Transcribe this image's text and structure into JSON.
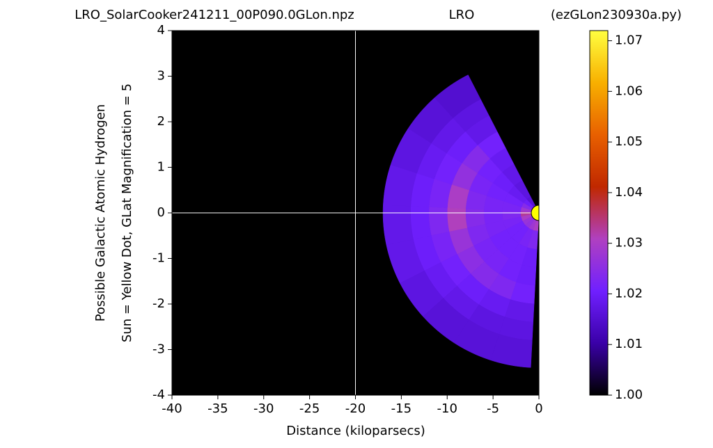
{
  "chart_data": {
    "type": "polar-heatmap",
    "title_left": "LRO_SolarCooker241211_00P090.0GLon.npz",
    "title_center": "LRO",
    "title_right": "(ezGLon230930a.py)",
    "ylabel": [
      "Possible Galactic Atomic Hydrogen",
      "Sun = Yellow Dot, GLat Magnification = 5"
    ],
    "xlabel": "Distance (kiloparsecs)",
    "xlim": [
      -40,
      0
    ],
    "xticks": [
      -40,
      -35,
      -30,
      -25,
      -20,
      -15,
      -10,
      -5,
      0
    ],
    "ylim": [
      -4,
      4
    ],
    "yticks": [
      -4,
      -3,
      -2,
      -1,
      0,
      1,
      2,
      3,
      4
    ],
    "y_magnification": 5,
    "theta_edges": [
      117,
      132,
      147,
      162,
      177,
      192,
      207,
      222,
      237,
      252,
      267
    ],
    "r_edges": [
      0,
      2,
      4,
      6,
      8,
      10,
      12,
      14,
      17
    ],
    "z": [
      [
        1.016,
        1.017,
        1.018,
        1.019,
        1.021,
        1.018,
        1.017,
        1.015
      ],
      [
        1.02,
        1.019,
        1.02,
        1.021,
        1.024,
        1.02,
        1.018,
        1.016
      ],
      [
        1.024,
        1.021,
        1.021,
        1.022,
        1.026,
        1.021,
        1.019,
        1.017
      ],
      [
        1.028,
        1.022,
        1.022,
        1.023,
        1.03,
        1.022,
        1.02,
        1.018
      ],
      [
        1.033,
        1.023,
        1.022,
        1.024,
        1.031,
        1.023,
        1.02,
        1.018
      ],
      [
        1.03,
        1.022,
        1.022,
        1.023,
        1.027,
        1.022,
        1.02,
        1.018
      ],
      [
        1.027,
        1.021,
        1.021,
        1.022,
        1.025,
        1.021,
        1.019,
        1.017
      ],
      [
        1.026,
        1.021,
        1.021,
        1.022,
        1.024,
        1.02,
        1.018,
        1.016
      ],
      [
        1.028,
        1.022,
        1.021,
        1.021,
        1.023,
        1.019,
        1.017,
        1.016
      ],
      [
        1.03,
        1.023,
        1.02,
        1.02,
        1.021,
        1.018,
        1.017,
        1.016
      ]
    ],
    "zlim": [
      1.0,
      1.072
    ],
    "zticks": [
      {
        "value": 1.0,
        "label": "1.00"
      },
      1.01,
      1.02,
      1.03,
      1.04,
      1.05,
      1.06,
      1.07
    ],
    "colormap": [
      "#000000",
      "#3a00a8",
      "#7020ff",
      "#b040c0",
      "#c02800",
      "#e86000",
      "#f8b000",
      "#ffff40"
    ],
    "background": "#000000",
    "crosshair": {
      "x": -20,
      "y": 0,
      "color": "#ffffff"
    },
    "sun": {
      "x": 0,
      "y": 0,
      "color": "#ffff00"
    }
  }
}
